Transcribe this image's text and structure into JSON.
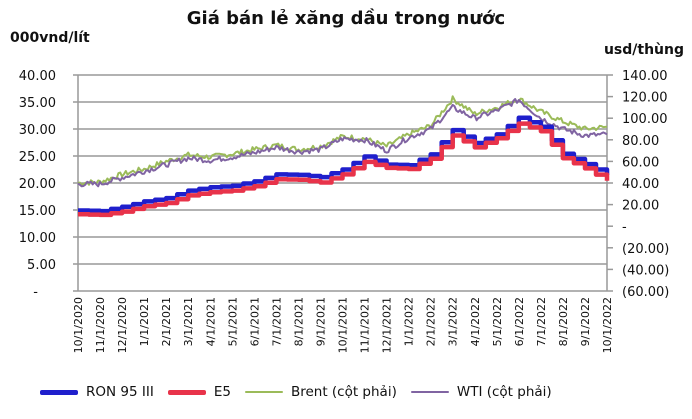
{
  "chart_data": {
    "type": "line",
    "title": "Giá bán lẻ xăng dầu trong nước",
    "ylabel_left": "000vnd/lít",
    "ylabel_right": "usd/thùng",
    "xlabel": "",
    "ylim_left": [
      0,
      40
    ],
    "ylim_right": [
      -60,
      140
    ],
    "yticks_left": [
      "40.00",
      "35.00",
      "30.00",
      "25.00",
      "20.00",
      "15.00",
      "10.00",
      "5.00",
      "-"
    ],
    "yticks_right": [
      "140.00",
      "120.00",
      "100.00",
      "80.00",
      "60.00",
      "40.00",
      "20.00",
      "-",
      "(20.00)",
      "(40.00)",
      "(60.00)"
    ],
    "grid": true,
    "legend_position": "bottom",
    "categories": [
      "10/1/2020",
      "11/1/2020",
      "12/1/2020",
      "1/1/2021",
      "2/1/2021",
      "3/1/2021",
      "4/1/2021",
      "5/1/2021",
      "6/1/2021",
      "7/1/2021",
      "8/1/2021",
      "9/1/2021",
      "10/1/2021",
      "11/1/2021",
      "12/1/2021",
      "1/1/2022",
      "2/1/2022",
      "3/1/2022",
      "4/1/2022",
      "5/1/2022",
      "6/1/2022",
      "7/1/2022",
      "8/1/2022",
      "9/1/2022",
      "10/1/2022"
    ],
    "series": [
      {
        "name": "RON 95 III",
        "axis": "left",
        "color": "#1f1fcc",
        "values": [
          14.9,
          14.8,
          15.6,
          16.6,
          17.2,
          18.6,
          19.2,
          19.5,
          20.3,
          21.6,
          21.5,
          21.1,
          22.5,
          24.9,
          23.4,
          23.3,
          25.3,
          29.8,
          27.4,
          29.0,
          32.1,
          30.4,
          25.4,
          23.5,
          21.5
        ]
      },
      {
        "name": "E5",
        "axis": "left",
        "color": "#e8334a",
        "values": [
          14.2,
          14.1,
          14.7,
          15.7,
          16.3,
          17.7,
          18.3,
          18.6,
          19.4,
          20.7,
          20.6,
          20.1,
          21.6,
          23.9,
          22.8,
          22.6,
          24.5,
          28.8,
          26.6,
          28.3,
          31.0,
          29.6,
          24.6,
          22.7,
          20.4
        ]
      },
      {
        "name": "Brent (cột phải)",
        "axis": "right",
        "color": "#9bbb59",
        "values": [
          40,
          41,
          48,
          53,
          60,
          66,
          64,
          67,
          71,
          75,
          71,
          74,
          83,
          81,
          74,
          85,
          93,
          118,
          104,
          110,
          118,
          106,
          97,
          90,
          92
        ]
      },
      {
        "name": "WTI (cột phải)",
        "axis": "right",
        "color": "#8064a2",
        "values": [
          39,
          39,
          45,
          51,
          57,
          63,
          61,
          64,
          68,
          73,
          69,
          71,
          81,
          80,
          70,
          82,
          90,
          110,
          100,
          107,
          117,
          100,
          90,
          84,
          85
        ]
      }
    ]
  },
  "page": {
    "title": "Giá bán lẻ xăng dầu trong nước",
    "unit_left": "000vnd/lít",
    "unit_right": "usd/thùng"
  },
  "legend": [
    {
      "label": "RON 95 III",
      "color": "#1f1fcc",
      "thick": true
    },
    {
      "label": "E5",
      "color": "#e8334a",
      "thick": true
    },
    {
      "label": "Brent (cột phải)",
      "color": "#9bbb59",
      "thick": false
    },
    {
      "label": "WTI (cột phải)",
      "color": "#8064a2",
      "thick": false
    }
  ]
}
